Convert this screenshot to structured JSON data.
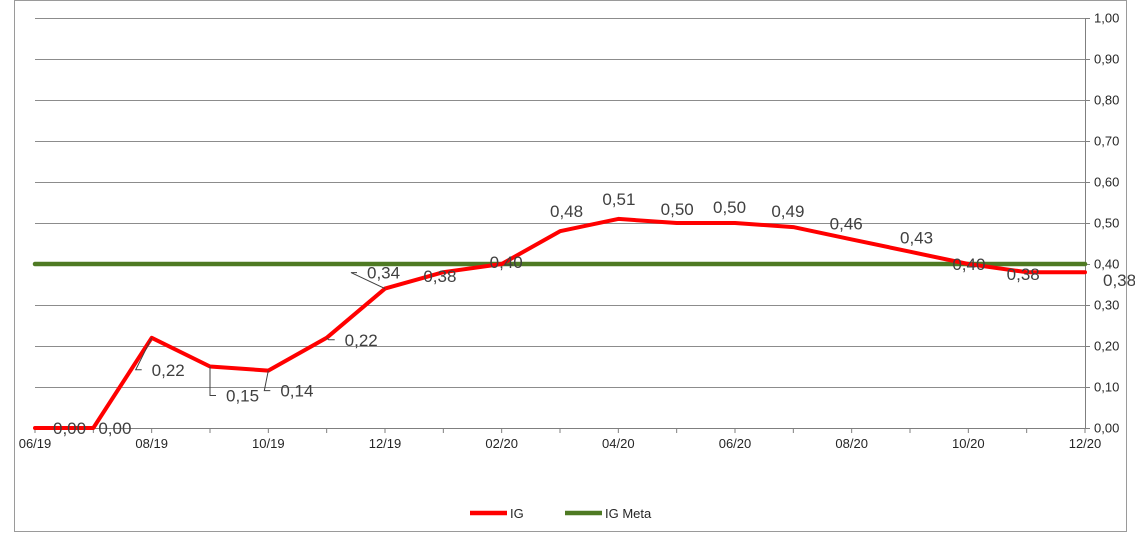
{
  "chart_data": {
    "type": "line",
    "title": "",
    "xlabel": "",
    "ylabel": "",
    "x": [
      "06/19",
      "07/19",
      "08/19",
      "09/19",
      "10/19",
      "11/19",
      "12/19",
      "01/20",
      "02/20",
      "03/20",
      "04/20",
      "05/20",
      "06/20",
      "07/20",
      "08/20",
      "09/20",
      "10/20",
      "11/20",
      "12/20"
    ],
    "x_tick_labels": [
      "06/19",
      "",
      "08/19",
      "",
      "10/19",
      "",
      "12/19",
      "",
      "02/20",
      "",
      "04/20",
      "",
      "06/20",
      "",
      "08/20",
      "",
      "10/20",
      "",
      "12/20"
    ],
    "y_axis_side": "right",
    "ylim": [
      0,
      1
    ],
    "y_ticks": [
      0,
      0.1,
      0.2,
      0.3,
      0.4,
      0.5,
      0.6,
      0.7,
      0.8,
      0.9,
      1.0
    ],
    "y_tick_labels": [
      "0,00",
      "0,10",
      "0,20",
      "0,30",
      "0,40",
      "0,50",
      "0,60",
      "0,70",
      "0,80",
      "0,90",
      "1,00"
    ],
    "grid": "horizontal",
    "legend": "bottom",
    "series": [
      {
        "name": "IG",
        "color": "#ff0000",
        "values": [
          0.0,
          0.0,
          0.22,
          0.15,
          0.14,
          0.22,
          0.34,
          0.38,
          0.4,
          0.48,
          0.51,
          0.5,
          0.5,
          0.49,
          0.46,
          0.43,
          0.4,
          0.38,
          0.38
        ],
        "labels": [
          "0,00",
          "0,00",
          "0,22",
          "0,15",
          "0,14",
          "0,22",
          "0,34",
          "0,38",
          "0,40",
          "0,48",
          "0,51",
          "0,50",
          "0,50",
          "0,49",
          "0,46",
          "0,43",
          "0,40",
          "0,38",
          "0,38"
        ]
      },
      {
        "name": "IG Meta",
        "color": "#4e7a23",
        "values": [
          0.4,
          0.4,
          0.4,
          0.4,
          0.4,
          0.4,
          0.4,
          0.4,
          0.4,
          0.4,
          0.4,
          0.4,
          0.4,
          0.4,
          0.4,
          0.4,
          0.4,
          0.4,
          0.4
        ]
      }
    ]
  }
}
